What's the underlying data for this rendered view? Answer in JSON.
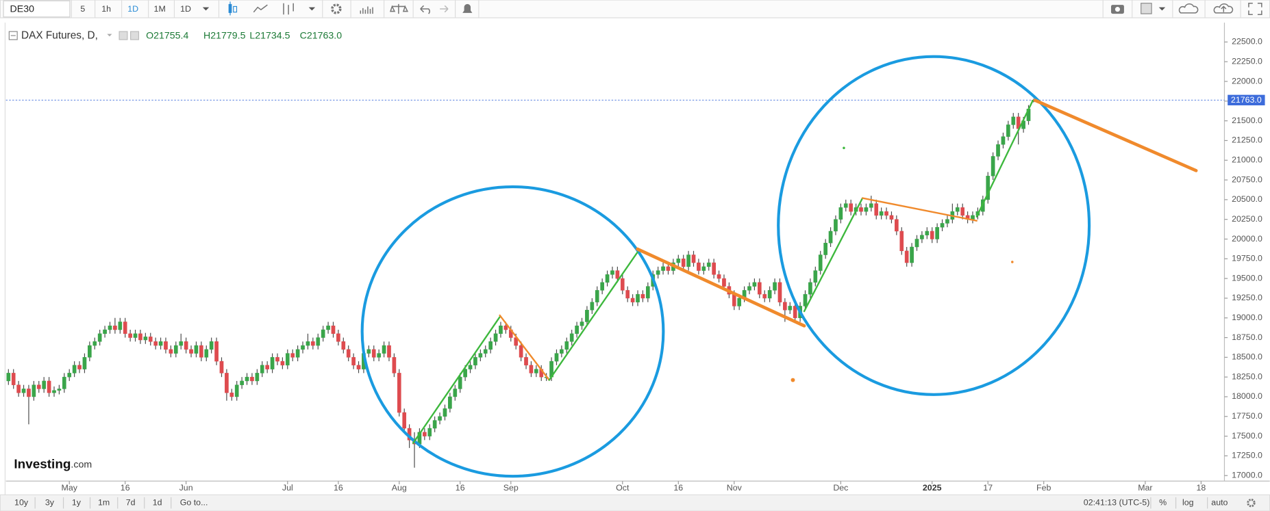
{
  "ui": {
    "symbol": "DE30",
    "intervals": [
      "5",
      "1h",
      "1D",
      "1M",
      "1D"
    ],
    "ranges": [
      "10y",
      "3y",
      "1y",
      "1m",
      "7d",
      "1d"
    ],
    "goto": "Go to...",
    "clock": "02:41:13 (UTC-5)",
    "scale_options": [
      "%",
      "log",
      "auto"
    ],
    "watermark": [
      "Investing",
      ".com"
    ]
  },
  "chart_data": {
    "type": "candlestick",
    "title": "DAX Futures, D,",
    "info": [
      "O21755.4",
      "H21779.5",
      "L21734.5",
      "C21763.0"
    ],
    "up_color": "#3aa54a",
    "down_color": "#de4b4f",
    "wick_color": "#4a4a4a",
    "last_price": {
      "value": 21763.0,
      "label": "21763.0",
      "color": "#3d6cdb"
    },
    "ylim": [
      16930,
      22725
    ],
    "yticks": [
      {
        "value": 17000,
        "label": "17000.0"
      },
      {
        "value": 17250,
        "label": "17250.0"
      },
      {
        "value": 17500,
        "label": "17500.0"
      },
      {
        "value": 17750,
        "label": "17750.0"
      },
      {
        "value": 18000,
        "label": "18000.0"
      },
      {
        "value": 18250,
        "label": "18250.0"
      },
      {
        "value": 18500,
        "label": "18500.0"
      },
      {
        "value": 18750,
        "label": "18750.0"
      },
      {
        "value": 19000,
        "label": "19000.0"
      },
      {
        "value": 19250,
        "label": "19250.0"
      },
      {
        "value": 19500,
        "label": "19500.0"
      },
      {
        "value": 19750,
        "label": "19750.0"
      },
      {
        "value": 20000,
        "label": "20000.0"
      },
      {
        "value": 20250,
        "label": "20250.0"
      },
      {
        "value": 20500,
        "label": "20500.0"
      },
      {
        "value": 20750,
        "label": "20750.0"
      },
      {
        "value": 21000,
        "label": "21000.0"
      },
      {
        "value": 21250,
        "label": "21250.0"
      },
      {
        "value": 21500,
        "label": "21500.0"
      },
      {
        "value": 21750,
        "label": "21750.0"
      },
      {
        "value": 22000,
        "label": "22000.0"
      },
      {
        "value": 22250,
        "label": "22250.0"
      },
      {
        "value": 22500,
        "label": "22500.0"
      }
    ],
    "xlim": [
      -0.5,
      239.6
    ],
    "xticks": [
      {
        "value": 12,
        "label": "May"
      },
      {
        "value": 23,
        "label": "16"
      },
      {
        "value": 35,
        "label": "Jun"
      },
      {
        "value": 55,
        "label": "Jul"
      },
      {
        "value": 65,
        "label": "16"
      },
      {
        "value": 77,
        "label": "Aug"
      },
      {
        "value": 89,
        "label": "16"
      },
      {
        "value": 99,
        "label": "Sep"
      },
      {
        "value": 121,
        "label": "Oct"
      },
      {
        "value": 132,
        "label": "16"
      },
      {
        "value": 143,
        "label": "Nov"
      },
      {
        "value": 164,
        "label": "Dec"
      },
      {
        "value": 182,
        "label": "2025"
      },
      {
        "value": 193,
        "label": "17"
      },
      {
        "value": 204,
        "label": "Feb"
      },
      {
        "value": 224,
        "label": "Mar"
      },
      {
        "value": 235,
        "label": "18"
      }
    ],
    "open": [
      18200,
      18300,
      18150,
      18050,
      18100,
      18000,
      18150,
      18100,
      18200,
      18050,
      18080,
      18100,
      18250,
      18300,
      18400,
      18350,
      18500,
      18650,
      18700,
      18800,
      18850,
      18900,
      18850,
      18950,
      18800,
      18750,
      18800,
      18720,
      18760,
      18700,
      18650,
      18700,
      18600,
      18550,
      18650,
      18700,
      18600,
      18550,
      18650,
      18500,
      18600,
      18700,
      18450,
      18300,
      18050,
      18000,
      18150,
      18200,
      18250,
      18200,
      18300,
      18400,
      18350,
      18500,
      18450,
      18400,
      18550,
      18500,
      18600,
      18650,
      18700,
      18650,
      18750,
      18850,
      18900,
      18800,
      18700,
      18600,
      18500,
      18400,
      18350,
      18550,
      18600,
      18500,
      18550,
      18650,
      18500,
      18300,
      17800,
      17600,
      17450,
      17400,
      17550,
      17500,
      17600,
      17700,
      17750,
      17850,
      18000,
      18100,
      18250,
      18350,
      18400,
      18500,
      18550,
      18600,
      18700,
      18800,
      18900,
      18850,
      18750,
      18650,
      18500,
      18400,
      18300,
      18350,
      18250,
      18250,
      18450,
      18550,
      18600,
      18700,
      18800,
      18900,
      18950,
      19100,
      19200,
      19350,
      19450,
      19550,
      19600,
      19500,
      19350,
      19250,
      19200,
      19300,
      19250,
      19400,
      19550,
      19600,
      19650,
      19600,
      19700,
      19750,
      19650,
      19800,
      19700,
      19600,
      19650,
      19700,
      19550,
      19500,
      19400,
      19300,
      19150,
      19250,
      19350,
      19400,
      19450,
      19300,
      19250,
      19350,
      19450,
      19200,
      19100,
      19150,
      19000,
      19150,
      19300,
      19450,
      19600,
      19800,
      19950,
      20100,
      20250,
      20400,
      20450,
      20350,
      20400,
      20350,
      20400,
      20450,
      20300,
      20350,
      20300,
      20250,
      20100,
      19850,
      19700,
      19900,
      20000,
      20050,
      20100,
      20000,
      20150,
      20200,
      20250,
      20350,
      20400,
      20300,
      20250,
      20300,
      20350,
      20500,
      20800,
      21050,
      21200,
      21300,
      21450,
      21550,
      21400,
      21500,
      21755.4
    ],
    "high": [
      18350,
      18350,
      18200,
      18150,
      18150,
      18200,
      18200,
      18250,
      18250,
      18130,
      18150,
      18300,
      18350,
      18450,
      18450,
      18550,
      18700,
      18750,
      18850,
      18900,
      18950,
      19000,
      19000,
      19000,
      18850,
      18850,
      18850,
      18810,
      18810,
      18750,
      18750,
      18750,
      18650,
      18700,
      18800,
      18750,
      18650,
      18700,
      18700,
      18650,
      18750,
      18750,
      18500,
      18350,
      18100,
      18200,
      18250,
      18300,
      18300,
      18350,
      18450,
      18450,
      18550,
      18550,
      18500,
      18600,
      18600,
      18650,
      18700,
      18800,
      18750,
      18800,
      18900,
      18950,
      18950,
      18850,
      18750,
      18650,
      18550,
      18450,
      18600,
      18650,
      18650,
      18600,
      18700,
      18700,
      18550,
      18350,
      17850,
      17650,
      17550,
      17600,
      17600,
      17650,
      17750,
      17800,
      17900,
      18050,
      18150,
      18300,
      18400,
      18450,
      18550,
      18600,
      18650,
      18750,
      18850,
      18950,
      18950,
      18900,
      18800,
      18700,
      18550,
      18450,
      18400,
      18400,
      18300,
      18500,
      18600,
      18650,
      18750,
      18850,
      18950,
      19000,
      19150,
      19250,
      19400,
      19500,
      19600,
      19650,
      19650,
      19550,
      19400,
      19300,
      19350,
      19350,
      19450,
      19600,
      19650,
      19700,
      19700,
      19750,
      19800,
      19800,
      19850,
      19850,
      19750,
      19700,
      19750,
      19750,
      19600,
      19550,
      19450,
      19350,
      19300,
      19400,
      19450,
      19500,
      19500,
      19350,
      19400,
      19500,
      19500,
      19250,
      19200,
      19200,
      19200,
      19350,
      19500,
      19650,
      19850,
      20000,
      20150,
      20300,
      20450,
      20500,
      20500,
      20450,
      20450,
      20450,
      20550,
      20500,
      20400,
      20400,
      20350,
      20300,
      20150,
      19900,
      19950,
      20050,
      20100,
      20150,
      20150,
      20200,
      20250,
      20300,
      20450,
      20450,
      20450,
      20350,
      20350,
      20400,
      20550,
      20850,
      21100,
      21250,
      21350,
      21500,
      21600,
      21600,
      21550,
      21700,
      21779.5
    ],
    "low": [
      18150,
      18100,
      18000,
      18000,
      17650,
      17950,
      18050,
      18050,
      18000,
      18000,
      18030,
      18050,
      18200,
      18250,
      18300,
      18300,
      18450,
      18600,
      18650,
      18750,
      18800,
      18800,
      18800,
      18750,
      18700,
      18700,
      18670,
      18670,
      18650,
      18600,
      18600,
      18550,
      18500,
      18500,
      18600,
      18550,
      18500,
      18500,
      18450,
      18450,
      18550,
      18400,
      18250,
      17950,
      17950,
      17950,
      18100,
      18150,
      18150,
      18150,
      18250,
      18300,
      18300,
      18400,
      18350,
      18350,
      18450,
      18450,
      18550,
      18600,
      18600,
      18600,
      18700,
      18800,
      18750,
      18650,
      18550,
      18450,
      18350,
      18300,
      18300,
      18500,
      18450,
      18450,
      18500,
      18450,
      18250,
      17750,
      17550,
      17350,
      17100,
      17350,
      17450,
      17450,
      17550,
      17650,
      17700,
      17800,
      17950,
      18050,
      18200,
      18300,
      18350,
      18450,
      18500,
      18550,
      18650,
      18750,
      18800,
      18700,
      18600,
      18450,
      18350,
      18250,
      18250,
      18200,
      18200,
      18200,
      18400,
      18500,
      18550,
      18650,
      18750,
      18850,
      18900,
      19050,
      19150,
      19300,
      19400,
      19500,
      19450,
      19300,
      19200,
      19150,
      19150,
      19200,
      19200,
      19350,
      19500,
      19550,
      19550,
      19550,
      19650,
      19600,
      19600,
      19650,
      19550,
      19550,
      19600,
      19500,
      19450,
      19350,
      19250,
      19100,
      19100,
      19200,
      19300,
      19350,
      19250,
      19200,
      19200,
      19300,
      19150,
      18950,
      19050,
      18950,
      18950,
      19100,
      19250,
      19400,
      19550,
      19750,
      19900,
      20050,
      20200,
      20350,
      20300,
      20300,
      20300,
      20300,
      20350,
      20250,
      20250,
      20250,
      20200,
      20050,
      19800,
      19650,
      19650,
      19850,
      19950,
      20000,
      19950,
      19950,
      20100,
      20150,
      20200,
      20300,
      20250,
      20200,
      20200,
      20250,
      20300,
      20450,
      20750,
      21000,
      21150,
      21250,
      21400,
      21200,
      21350,
      21450,
      21734.5
    ],
    "close": [
      18300,
      18150,
      18050,
      18100,
      18000,
      18150,
      18100,
      18200,
      18050,
      18080,
      18100,
      18250,
      18300,
      18400,
      18350,
      18500,
      18650,
      18700,
      18800,
      18850,
      18900,
      18850,
      18950,
      18800,
      18750,
      18800,
      18720,
      18760,
      18700,
      18650,
      18700,
      18600,
      18550,
      18650,
      18700,
      18600,
      18550,
      18650,
      18500,
      18600,
      18700,
      18450,
      18300,
      18050,
      18000,
      18150,
      18200,
      18250,
      18200,
      18300,
      18400,
      18350,
      18500,
      18450,
      18400,
      18550,
      18500,
      18600,
      18650,
      18700,
      18650,
      18750,
      18850,
      18900,
      18800,
      18700,
      18600,
      18500,
      18400,
      18350,
      18550,
      18600,
      18500,
      18550,
      18650,
      18500,
      18300,
      17800,
      17600,
      17450,
      17400,
      17550,
      17500,
      17600,
      17700,
      17750,
      17850,
      18000,
      18100,
      18250,
      18350,
      18400,
      18500,
      18550,
      18600,
      18700,
      18800,
      18900,
      18850,
      18750,
      18650,
      18500,
      18400,
      18300,
      18350,
      18250,
      18250,
      18450,
      18550,
      18600,
      18700,
      18800,
      18900,
      18950,
      19100,
      19200,
      19350,
      19450,
      19550,
      19600,
      19500,
      19350,
      19250,
      19200,
      19300,
      19250,
      19400,
      19550,
      19600,
      19650,
      19600,
      19700,
      19750,
      19650,
      19800,
      19700,
      19600,
      19650,
      19700,
      19550,
      19500,
      19400,
      19300,
      19150,
      19250,
      19350,
      19400,
      19450,
      19300,
      19250,
      19350,
      19450,
      19200,
      19100,
      19150,
      19000,
      19150,
      19300,
      19450,
      19600,
      19800,
      19950,
      20100,
      20250,
      20400,
      20450,
      20350,
      20400,
      20350,
      20400,
      20450,
      20300,
      20350,
      20300,
      20250,
      20100,
      19850,
      19700,
      19900,
      20000,
      20050,
      20100,
      20000,
      20150,
      20200,
      20250,
      20350,
      20400,
      20300,
      20250,
      20300,
      20350,
      20500,
      20800,
      21050,
      21200,
      21300,
      21450,
      21550,
      21400,
      21500,
      21650,
      21763.0
    ]
  }
}
